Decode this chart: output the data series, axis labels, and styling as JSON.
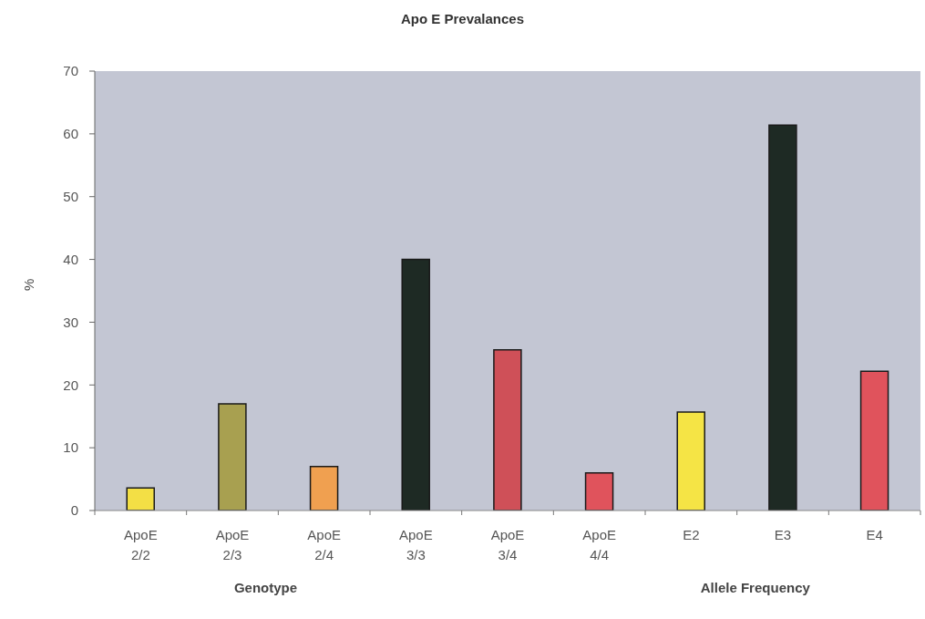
{
  "chart_data": {
    "type": "bar",
    "title": "Apo E Prevalances",
    "ylabel": "%",
    "categories": [
      "ApoE 2/2",
      "ApoE 2/3",
      "ApoE 2/4",
      "ApoE 3/3",
      "ApoE 3/4",
      "ApoE 4/4",
      "E2",
      "E3",
      "E4"
    ],
    "values": [
      3.6,
      17,
      7,
      40,
      25.6,
      6,
      15.7,
      61.4,
      22.2
    ],
    "colors": [
      "#f3df45",
      "#a8a050",
      "#f0a050",
      "#1e2a24",
      "#cf5058",
      "#e0535c",
      "#f5e445",
      "#1e2a24",
      "#e0535c"
    ],
    "ylim": [
      0,
      70
    ],
    "yticks": [
      0,
      10,
      20,
      30,
      40,
      50,
      60,
      70
    ],
    "annotations": [
      "Genotype",
      "Allele Frequency"
    ]
  }
}
